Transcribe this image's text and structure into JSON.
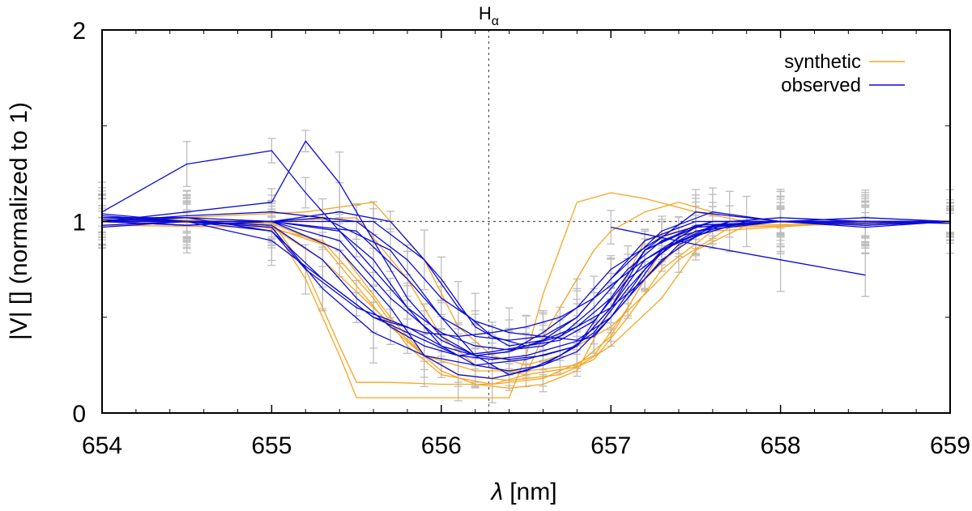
{
  "chart_data": {
    "type": "line",
    "xlabel_symbol": "λ",
    "xlabel_unit": "[nm]",
    "ylabel": "|V| [] (normalized to 1)",
    "xlim": [
      654,
      659
    ],
    "ylim": [
      0,
      2
    ],
    "x_ticks": [
      "654",
      "655",
      "656",
      "657",
      "658",
      "659"
    ],
    "y_ticks": [
      "0",
      "1",
      "2"
    ],
    "reference_line_y": 1,
    "annotation": {
      "label": "H",
      "subscript": "α",
      "x": 656.28
    },
    "colors": {
      "synthetic": "#f5a623",
      "observed": "#0b0bd6",
      "errorbar": "#bdbdbd",
      "reference": "#555555"
    },
    "series": [
      {
        "name": "synthetic",
        "curves": [
          {
            "x": [
              654.0,
              654.5,
              655.0,
              655.2,
              655.4,
              655.5,
              655.7,
              656.0,
              656.3,
              656.5,
              656.6,
              656.8,
              656.9,
              657.0,
              657.2,
              657.4,
              657.6,
              658.0,
              658.5,
              659.0
            ],
            "y": [
              1.0,
              1.02,
              1.0,
              0.75,
              0.35,
              0.16,
              0.16,
              0.15,
              0.15,
              0.2,
              0.4,
              0.7,
              0.85,
              0.95,
              1.05,
              1.1,
              1.05,
              1.0,
              0.99,
              1.0
            ]
          },
          {
            "x": [
              654.0,
              654.5,
              655.0,
              655.2,
              655.4,
              655.5,
              655.8,
              656.0,
              656.4,
              656.5,
              656.6,
              656.8,
              657.0,
              657.2,
              657.5,
              657.8,
              658.5,
              659.0
            ],
            "y": [
              1.0,
              1.0,
              0.98,
              0.7,
              0.3,
              0.08,
              0.08,
              0.08,
              0.08,
              0.3,
              0.62,
              1.1,
              1.15,
              1.12,
              1.05,
              1.0,
              0.99,
              1.0
            ]
          },
          {
            "x": [
              654.0,
              654.8,
              655.3,
              655.6,
              655.8,
              656.0,
              656.3,
              656.6,
              656.9,
              657.1,
              657.3,
              657.5,
              658.0,
              659.0
            ],
            "y": [
              1.02,
              1.0,
              0.9,
              0.6,
              0.35,
              0.2,
              0.15,
              0.18,
              0.3,
              0.55,
              0.85,
              0.98,
              1.0,
              1.0
            ]
          },
          {
            "x": [
              654.0,
              655.0,
              655.4,
              655.7,
              655.9,
              656.1,
              656.4,
              656.7,
              656.9,
              657.1,
              657.3,
              657.6,
              658.5,
              659.0
            ],
            "y": [
              1.0,
              0.99,
              0.85,
              0.5,
              0.3,
              0.2,
              0.17,
              0.2,
              0.28,
              0.5,
              0.75,
              0.95,
              1.0,
              0.99
            ]
          },
          {
            "x": [
              654.0,
              655.0,
              655.5,
              655.8,
              656.0,
              656.2,
              656.5,
              656.8,
              657.0,
              657.3,
              657.5,
              657.8,
              659.0
            ],
            "y": [
              1.0,
              1.0,
              1.02,
              0.7,
              0.4,
              0.25,
              0.2,
              0.24,
              0.35,
              0.6,
              0.85,
              0.98,
              1.0
            ]
          },
          {
            "x": [
              654.0,
              655.2,
              655.6,
              655.9,
              656.1,
              656.3,
              656.5,
              656.7,
              657.0,
              657.2,
              657.4,
              657.7,
              659.0
            ],
            "y": [
              1.0,
              1.05,
              1.1,
              0.8,
              0.45,
              0.3,
              0.25,
              0.3,
              0.45,
              0.62,
              0.8,
              0.97,
              1.0
            ]
          },
          {
            "x": [
              654.0,
              655.0,
              655.3,
              655.6,
              655.9,
              656.2,
              656.5,
              656.8,
              657.0,
              657.2,
              657.5,
              658.0,
              659.0
            ],
            "y": [
              0.98,
              0.97,
              0.8,
              0.55,
              0.3,
              0.22,
              0.22,
              0.25,
              0.4,
              0.7,
              0.95,
              1.0,
              1.0
            ]
          },
          {
            "x": [
              654.0,
              654.9,
              655.3,
              655.7,
              656.0,
              656.2,
              656.4,
              656.6,
              656.8,
              657.0,
              657.2,
              657.6,
              658.5,
              659.0
            ],
            "y": [
              1.01,
              1.0,
              0.88,
              0.45,
              0.22,
              0.15,
              0.13,
              0.15,
              0.22,
              0.55,
              0.9,
              1.0,
              1.0,
              1.0
            ]
          }
        ]
      },
      {
        "name": "observed",
        "curves": [
          {
            "x": [
              654.0,
              654.5,
              655.0,
              655.2,
              655.4,
              655.6,
              655.8,
              656.0,
              656.2,
              656.4,
              656.6,
              656.8,
              657.0,
              657.2,
              657.5,
              658.0,
              658.5,
              659.0
            ],
            "y": [
              1.05,
              1.3,
              1.37,
              1.15,
              0.95,
              0.75,
              0.55,
              0.42,
              0.35,
              0.33,
              0.35,
              0.45,
              0.6,
              0.85,
              0.97,
              1.0,
              1.02,
              1.0
            ]
          },
          {
            "x": [
              654.0,
              654.5,
              655.0,
              655.2,
              655.4,
              655.6,
              655.8,
              656.0,
              656.2,
              656.4,
              656.6,
              656.8,
              657.0,
              657.2,
              657.5,
              658.0,
              658.5,
              659.0
            ],
            "y": [
              1.0,
              1.05,
              1.1,
              1.42,
              1.2,
              0.9,
              0.6,
              0.4,
              0.3,
              0.28,
              0.3,
              0.35,
              0.55,
              0.85,
              1.05,
              1.0,
              0.98,
              1.0
            ]
          },
          {
            "x": [
              654.0,
              654.5,
              655.0,
              655.3,
              655.5,
              655.7,
              655.9,
              656.1,
              656.3,
              656.5,
              656.7,
              656.9,
              657.1,
              657.3,
              657.6,
              658.0,
              658.5,
              659.0
            ],
            "y": [
              1.02,
              1.0,
              0.98,
              0.8,
              0.6,
              0.45,
              0.35,
              0.3,
              0.32,
              0.35,
              0.4,
              0.55,
              0.75,
              0.9,
              1.0,
              1.0,
              0.98,
              1.0
            ]
          },
          {
            "x": [
              654.0,
              654.5,
              655.0,
              655.4,
              655.6,
              655.8,
              656.0,
              656.2,
              656.4,
              656.6,
              656.8,
              657.0,
              657.2,
              657.4,
              657.7,
              658.0,
              658.5,
              659.0
            ],
            "y": [
              0.98,
              1.0,
              1.0,
              0.95,
              0.8,
              0.55,
              0.35,
              0.25,
              0.22,
              0.25,
              0.32,
              0.5,
              0.75,
              0.92,
              1.0,
              1.02,
              1.0,
              1.0
            ]
          },
          {
            "x": [
              654.0,
              654.5,
              655.0,
              655.3,
              655.6,
              655.9,
              656.1,
              656.3,
              656.5,
              656.7,
              656.9,
              657.1,
              657.3,
              657.6,
              658.0,
              658.5,
              659.0
            ],
            "y": [
              1.0,
              1.02,
              0.95,
              0.7,
              0.5,
              0.38,
              0.3,
              0.28,
              0.3,
              0.35,
              0.4,
              0.6,
              0.85,
              0.98,
              1.0,
              1.0,
              1.0
            ]
          },
          {
            "x": [
              654.0,
              654.5,
              655.0,
              655.4,
              655.7,
              656.0,
              656.2,
              656.4,
              656.6,
              656.8,
              657.0,
              657.2,
              657.4,
              657.7,
              658.0,
              658.5,
              659.0
            ],
            "y": [
              1.04,
              1.0,
              1.0,
              0.9,
              0.6,
              0.38,
              0.3,
              0.32,
              0.38,
              0.45,
              0.55,
              0.7,
              0.88,
              1.0,
              1.0,
              0.97,
              1.0
            ]
          },
          {
            "x": [
              654.0,
              654.5,
              655.0,
              655.3,
              655.6,
              655.9,
              656.1,
              656.3,
              656.5,
              656.7,
              656.9,
              657.2,
              657.5,
              658.0,
              658.5,
              659.0
            ],
            "y": [
              1.01,
              1.0,
              0.9,
              0.7,
              0.5,
              0.42,
              0.4,
              0.42,
              0.45,
              0.5,
              0.6,
              0.8,
              0.95,
              1.0,
              0.99,
              1.0
            ]
          },
          {
            "x": [
              654.0,
              654.5,
              655.0,
              655.5,
              655.8,
              656.0,
              656.2,
              656.4,
              656.6,
              656.8,
              657.0,
              657.3,
              657.6,
              658.0,
              658.5,
              659.0
            ],
            "y": [
              1.0,
              1.03,
              1.05,
              1.0,
              0.8,
              0.6,
              0.48,
              0.42,
              0.4,
              0.38,
              0.5,
              0.8,
              0.98,
              1.0,
              1.0,
              1.0
            ]
          },
          {
            "x": [
              654.0,
              654.5,
              655.0,
              655.4,
              655.7,
              655.9,
              656.1,
              656.3,
              656.5,
              656.7,
              656.9,
              657.1,
              657.3,
              657.6,
              658.0,
              658.5,
              659.0
            ],
            "y": [
              0.97,
              1.0,
              1.0,
              0.85,
              0.55,
              0.3,
              0.2,
              0.18,
              0.22,
              0.3,
              0.42,
              0.65,
              0.85,
              0.97,
              1.0,
              1.0,
              0.99
            ]
          },
          {
            "x": [
              654.0,
              654.5,
              655.0,
              655.3,
              655.6,
              655.9,
              656.2,
              656.5,
              656.8,
              657.0,
              657.2,
              657.5,
              658.0,
              658.5,
              659.0
            ],
            "y": [
              1.0,
              1.0,
              0.97,
              0.65,
              0.42,
              0.3,
              0.25,
              0.28,
              0.35,
              0.6,
              0.85,
              0.98,
              1.0,
              1.0,
              1.0
            ]
          },
          {
            "x": [
              654.0,
              654.5,
              655.0,
              655.5,
              655.8,
              656.0,
              656.2,
              656.4,
              656.6,
              656.8,
              657.0,
              657.2,
              657.5,
              658.0,
              658.5,
              659.0
            ],
            "y": [
              1.02,
              1.02,
              1.0,
              0.95,
              0.7,
              0.5,
              0.4,
              0.38,
              0.4,
              0.5,
              0.7,
              0.9,
              1.0,
              1.0,
              1.0,
              1.0
            ]
          },
          {
            "x": [
              654.0,
              654.5,
              655.0,
              655.6,
              655.9,
              656.1,
              656.3,
              656.5,
              656.7,
              656.9,
              657.1,
              657.4,
              657.8,
              658.0,
              658.5,
              659.0
            ],
            "y": [
              1.0,
              0.98,
              1.0,
              1.0,
              0.8,
              0.55,
              0.4,
              0.35,
              0.38,
              0.48,
              0.7,
              0.9,
              1.0,
              1.0,
              1.0,
              1.0
            ]
          },
          {
            "x": [
              657.0,
              657.5,
              658.0,
              658.5
            ],
            "y": [
              0.97,
              0.88,
              0.8,
              0.72
            ]
          },
          {
            "x": [
              654.0,
              654.5,
              655.0,
              655.2,
              655.5,
              655.8,
              656.0,
              656.2,
              656.4,
              656.6,
              656.8,
              657.0,
              657.3,
              657.6,
              658.0,
              658.5,
              659.0
            ],
            "y": [
              1.03,
              1.0,
              0.95,
              0.75,
              0.55,
              0.45,
              0.35,
              0.3,
              0.32,
              0.42,
              0.55,
              0.75,
              0.92,
              1.0,
              1.0,
              1.0,
              1.0
            ]
          },
          {
            "x": [
              654.0,
              654.5,
              655.0,
              655.3,
              655.7,
              656.0,
              656.2,
              656.4,
              656.6,
              656.8,
              657.0,
              657.2,
              657.5,
              658.0,
              658.5,
              659.0
            ],
            "y": [
              1.0,
              1.0,
              1.0,
              1.02,
              0.85,
              0.5,
              0.3,
              0.2,
              0.25,
              0.35,
              0.55,
              0.8,
              0.97,
              1.0,
              1.0,
              1.0
            ]
          },
          {
            "x": [
              654.0,
              654.5,
              655.0,
              655.4,
              655.7,
              656.0,
              656.2,
              656.4,
              656.6,
              656.8,
              657.0,
              657.3,
              657.6,
              658.0,
              658.5,
              659.0
            ],
            "y": [
              1.0,
              0.98,
              1.0,
              1.05,
              1.0,
              0.7,
              0.45,
              0.35,
              0.38,
              0.5,
              0.7,
              0.95,
              1.05,
              1.0,
              1.0,
              1.0
            ]
          }
        ]
      }
    ]
  },
  "legend": [
    {
      "label": "synthetic",
      "color_key": "synthetic"
    },
    {
      "label": "observed",
      "color_key": "observed"
    }
  ]
}
